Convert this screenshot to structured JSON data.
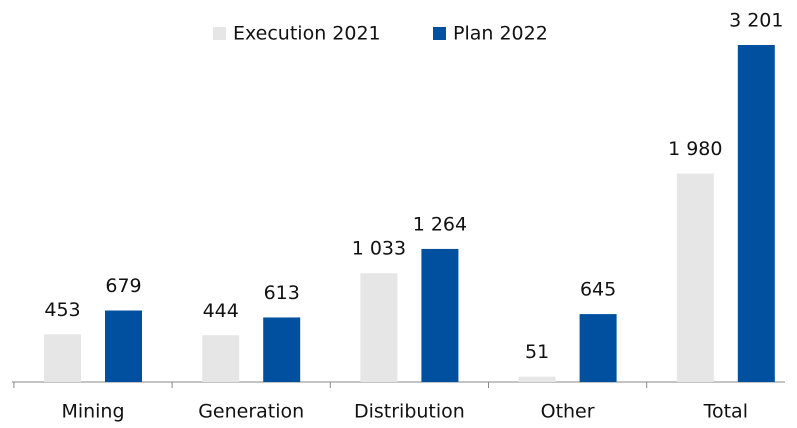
{
  "chart_data": {
    "type": "bar",
    "categories": [
      "Mining",
      "Generation",
      "Distribution",
      "Other",
      "Total"
    ],
    "series": [
      {
        "name": "Execution 2021",
        "color": "#e6e6e6",
        "values": [
          453,
          444,
          1033,
          51,
          1980
        ],
        "value_labels": [
          "453",
          "444",
          "1 033",
          "51",
          "1 980"
        ]
      },
      {
        "name": "Plan 2022",
        "color": "#0050a0",
        "values": [
          679,
          613,
          1264,
          645,
          3201
        ],
        "value_labels": [
          "679",
          "613",
          "1 264",
          "645",
          "3 201"
        ]
      }
    ],
    "legend": "top"
  }
}
